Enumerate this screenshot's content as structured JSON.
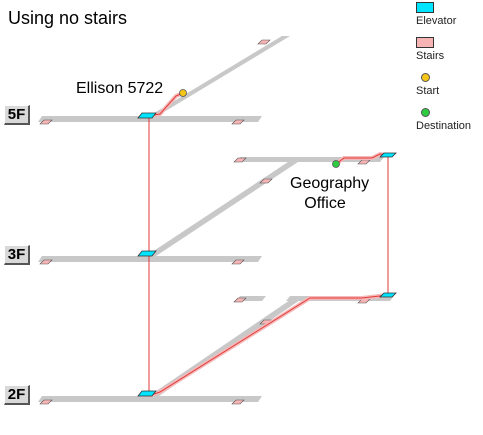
{
  "title": "Using no stairs",
  "floors": [
    "5F",
    "3F",
    "2F"
  ],
  "places": {
    "start": "Ellison 5722",
    "destination_line1": "Geography",
    "destination_line2": "Office"
  },
  "legend": [
    {
      "label": "Elevator",
      "kind": "swatch",
      "color": "#00e5ff"
    },
    {
      "label": "Stairs",
      "kind": "swatch",
      "color": "#f7b4b4"
    },
    {
      "label": "Start",
      "kind": "dot",
      "color": "#f5c518"
    },
    {
      "label": "Destination",
      "kind": "dot",
      "color": "#2ecc40"
    }
  ],
  "colors": {
    "corridor": "#c8c8c8",
    "route": "#e03a3a",
    "route_halo": "#f6b8b8",
    "elevator": "#00e5ff",
    "stairs": "#f7b4b4"
  }
}
